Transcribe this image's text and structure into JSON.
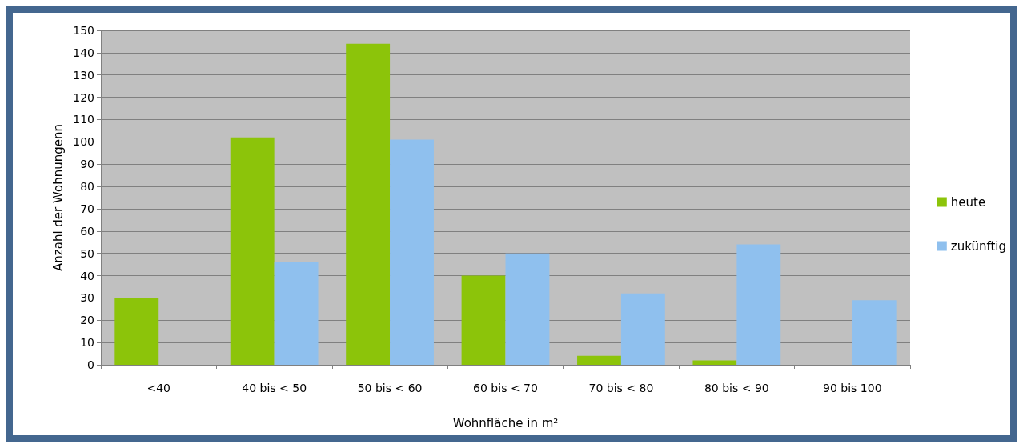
{
  "chart_data": {
    "type": "bar",
    "xlabel": "Wohnfläche in m²",
    "ylabel": "Anzahl der Wohnungenn",
    "categories": [
      "<40",
      "40 bis < 50",
      "50 bis < 60",
      "60 bis < 70",
      "70 bis < 80",
      "80 bis < 90",
      "90 bis 100"
    ],
    "series": [
      {
        "name": "heute",
        "color": "#8cc40a",
        "values": [
          30,
          102,
          144,
          40,
          4,
          2,
          0
        ]
      },
      {
        "name": "zukünftig",
        "color": "#8fc0ee",
        "values": [
          0,
          46,
          101,
          50,
          32,
          54,
          29
        ]
      }
    ],
    "ylim": [
      0,
      150
    ],
    "yticks": [
      0,
      10,
      20,
      30,
      40,
      50,
      60,
      70,
      80,
      90,
      100,
      110,
      120,
      130,
      140,
      150
    ],
    "grid": "y",
    "legend": "right"
  }
}
